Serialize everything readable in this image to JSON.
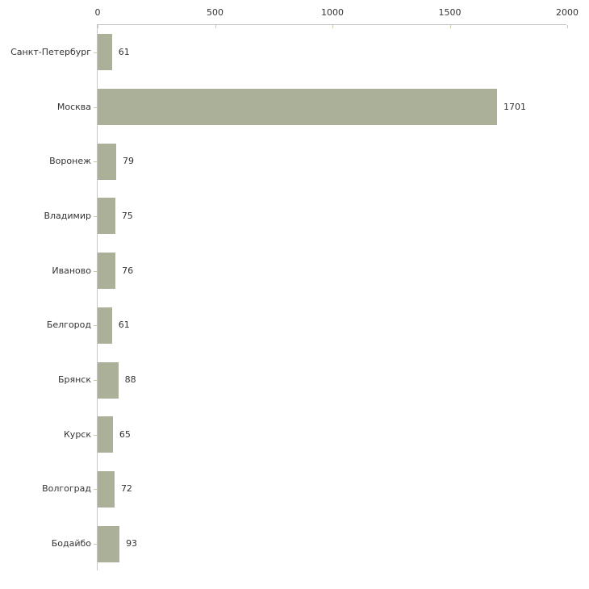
{
  "chart_data": {
    "type": "bar",
    "orientation": "horizontal",
    "categories": [
      "Санкт-Петербург",
      "Москва",
      "Воронеж",
      "Владимир",
      "Иваново",
      "Белгород",
      "Брянск",
      "Курск",
      "Волгоград",
      "Бодайбо"
    ],
    "values": [
      61,
      1701,
      79,
      75,
      76,
      61,
      88,
      65,
      72,
      93
    ],
    "value_labels": [
      "61",
      "1701",
      "79",
      "75",
      "76",
      "61",
      "88",
      "65",
      "72",
      "93"
    ],
    "title": "",
    "xlabel": "",
    "ylabel": "",
    "xlim": [
      0,
      2000
    ],
    "xticks": [
      0,
      500,
      1000,
      1500,
      2000
    ],
    "xtick_labels": [
      "0",
      "500",
      "1000",
      "1500",
      "2000"
    ],
    "axis_position": "top",
    "grid": false,
    "legend": false
  },
  "colors": {
    "bar_fill": "#abb199",
    "axis_line": "#c6c6c6",
    "tick_mark": "#c9cba6",
    "text": "#333333",
    "background": "#ffffff"
  }
}
